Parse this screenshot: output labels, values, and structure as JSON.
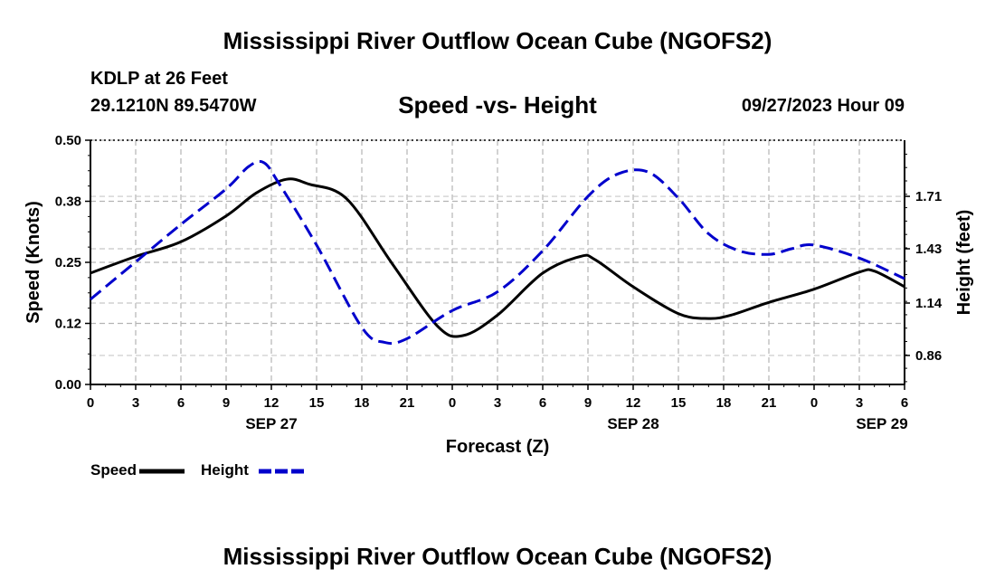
{
  "page": {
    "title_top": "Mississippi River Outflow Ocean Cube (NGOFS2)",
    "title_bottom": "Mississippi River Outflow Ocean Cube (NGOFS2)",
    "station": "KDLP at 26 Feet",
    "coords": "29.1210N  89.5470W",
    "subtitle": "Speed -vs- Height",
    "datetime": "09/27/2023 Hour 09"
  },
  "chart_data": {
    "type": "line",
    "title": "Speed -vs- Height",
    "xlabel": "Forecast (Z)",
    "ylabel": "Speed (Knots)",
    "y2label": "Height (feet)",
    "x_range_hours": [
      0,
      54
    ],
    "xticks": [
      {
        "h": 0,
        "label": "0"
      },
      {
        "h": 3,
        "label": "3"
      },
      {
        "h": 6,
        "label": "6"
      },
      {
        "h": 9,
        "label": "9"
      },
      {
        "h": 12,
        "label": "12"
      },
      {
        "h": 15,
        "label": "15"
      },
      {
        "h": 18,
        "label": "18"
      },
      {
        "h": 21,
        "label": "21"
      },
      {
        "h": 24,
        "label": "0"
      },
      {
        "h": 27,
        "label": "3"
      },
      {
        "h": 30,
        "label": "6"
      },
      {
        "h": 33,
        "label": "9"
      },
      {
        "h": 36,
        "label": "12"
      },
      {
        "h": 39,
        "label": "15"
      },
      {
        "h": 42,
        "label": "18"
      },
      {
        "h": 45,
        "label": "21"
      },
      {
        "h": 48,
        "label": "0"
      },
      {
        "h": 51,
        "label": "3"
      },
      {
        "h": 54,
        "label": "6"
      }
    ],
    "date_labels": [
      {
        "h": 12,
        "label": "SEP 27"
      },
      {
        "h": 36,
        "label": "SEP 28"
      },
      {
        "h": 52.5,
        "label": "SEP 29"
      }
    ],
    "ylim": [
      0,
      0.5
    ],
    "yticks": [
      {
        "v": 0,
        "label": "0.00"
      },
      {
        "v": 0.125,
        "label": "0.12"
      },
      {
        "v": 0.25,
        "label": "0.25"
      },
      {
        "v": 0.375,
        "label": "0.38"
      },
      {
        "v": 0.5,
        "label": "0.50"
      }
    ],
    "y2lim": [
      0.705,
      2.01
    ],
    "y2ticks": [
      {
        "v": 0.86,
        "label": "0.86"
      },
      {
        "v": 1.14,
        "label": "1.14"
      },
      {
        "v": 1.43,
        "label": "1.43"
      },
      {
        "v": 1.71,
        "label": "1.71"
      }
    ],
    "series": [
      {
        "name": "Speed",
        "axis": "left",
        "color": "#000000",
        "dash": "solid",
        "x": [
          0,
          3,
          6,
          9,
          11,
          13,
          14.5,
          17,
          20,
          23,
          24.7,
          27,
          30,
          32.5,
          33.5,
          36,
          39,
          41,
          42.5,
          45,
          48,
          51,
          52,
          54
        ],
        "values": [
          0.228,
          0.262,
          0.292,
          0.345,
          0.392,
          0.42,
          0.41,
          0.38,
          0.248,
          0.12,
          0.1,
          0.142,
          0.228,
          0.262,
          0.255,
          0.2,
          0.145,
          0.135,
          0.142,
          0.168,
          0.195,
          0.23,
          0.232,
          0.2
        ]
      },
      {
        "name": "Height",
        "axis": "right",
        "color": "#0000cc",
        "dash": "dashed",
        "x": [
          0,
          3,
          6,
          9,
          10.5,
          11.5,
          12.5,
          15,
          18,
          19.5,
          21,
          24,
          27,
          30,
          33,
          35,
          37,
          39,
          41,
          43,
          45,
          46.5,
          48,
          51,
          54
        ],
        "values": [
          1.16,
          1.36,
          1.56,
          1.75,
          1.87,
          1.89,
          1.78,
          1.45,
          1.01,
          0.93,
          0.95,
          1.1,
          1.2,
          1.42,
          1.71,
          1.83,
          1.84,
          1.7,
          1.51,
          1.42,
          1.4,
          1.43,
          1.45,
          1.38,
          1.27
        ]
      }
    ],
    "legend": [
      {
        "label": "Speed",
        "color": "#000000",
        "dash": "solid"
      },
      {
        "label": "Height",
        "color": "#0000cc",
        "dash": "dashed"
      }
    ]
  }
}
